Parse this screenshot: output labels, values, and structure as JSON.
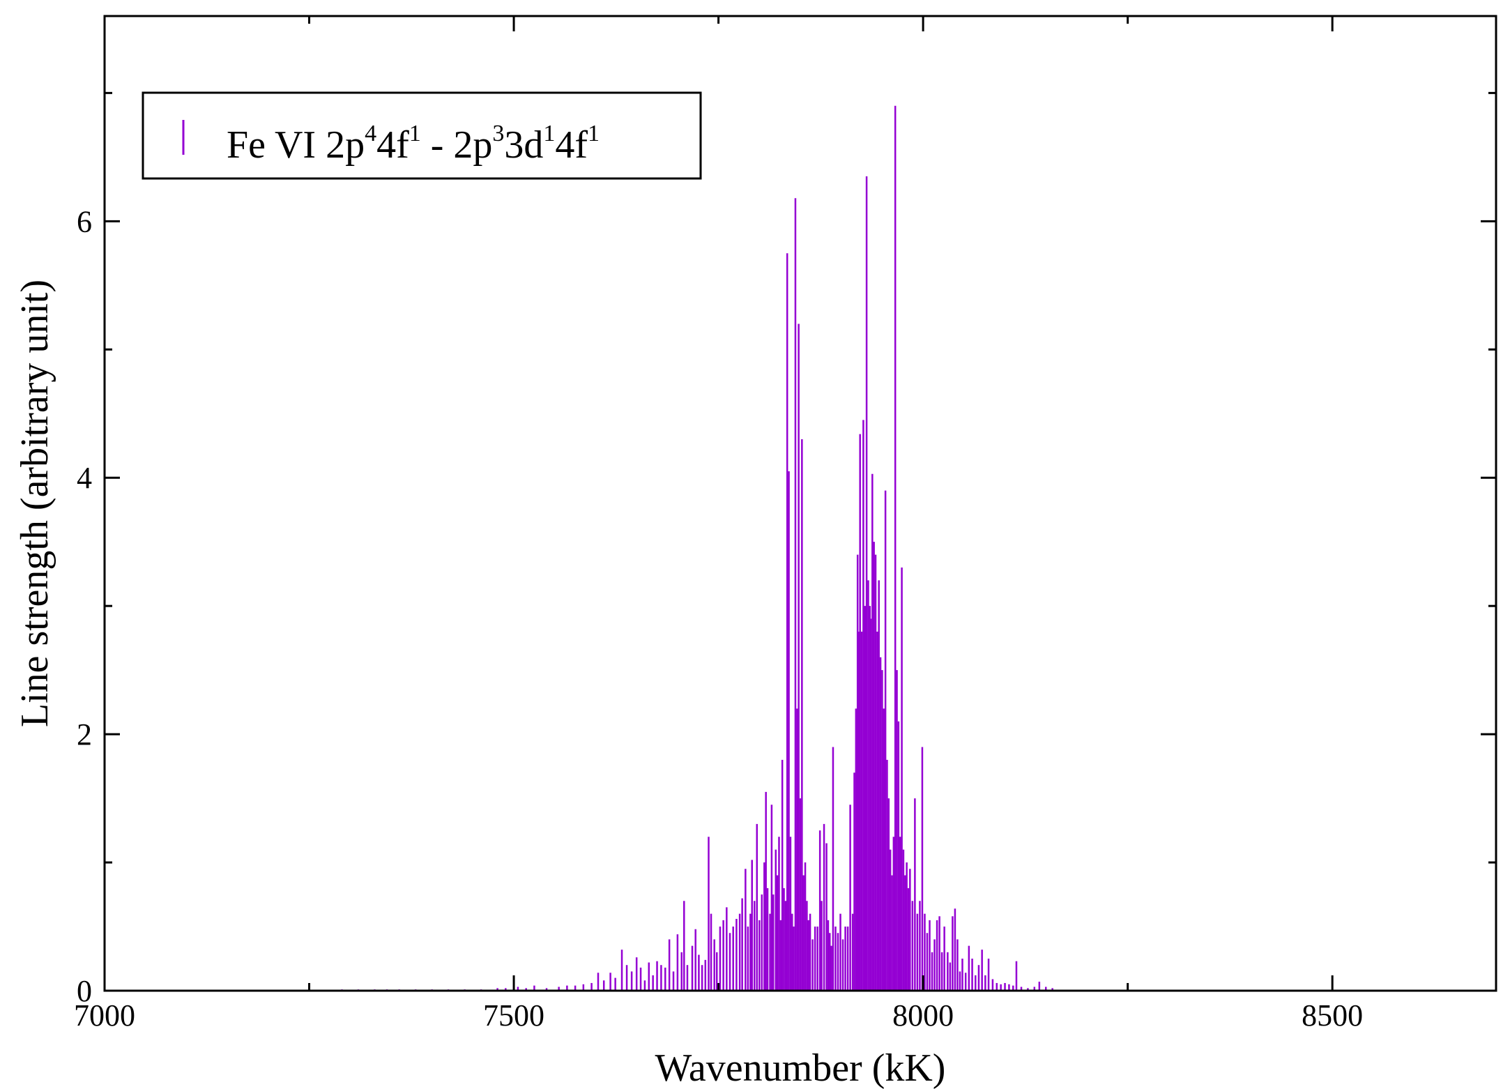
{
  "chart_data": {
    "type": "bar",
    "xlabel": "Wavenumber (kK)",
    "ylabel": "Line strength (arbitrary unit)",
    "xlim": [
      7000,
      8700
    ],
    "ylim": [
      0,
      7.6
    ],
    "x_ticks": [
      7000,
      7500,
      8000,
      8500
    ],
    "y_ticks": [
      0,
      2,
      4,
      6
    ],
    "x_minor_step": 250,
    "y_minor_step": 1,
    "grid": false,
    "legend_position": "top-left",
    "color": "#9400D3",
    "series": [
      {
        "name": "Fe VI 2p44f1 - 2p33d14f1",
        "legend_parts": [
          {
            "text": "Fe VI 2p",
            "sup": false
          },
          {
            "text": "4",
            "sup": true
          },
          {
            "text": "4f",
            "sup": false
          },
          {
            "text": "1",
            "sup": true
          },
          {
            "text": " - 2p",
            "sup": false
          },
          {
            "text": "3",
            "sup": true
          },
          {
            "text": "3d",
            "sup": false
          },
          {
            "text": "1",
            "sup": true
          },
          {
            "text": "4f",
            "sup": false
          },
          {
            "text": "1",
            "sup": true
          }
        ],
        "lines": [
          [
            7290,
            0.01
          ],
          [
            7310,
            0.01
          ],
          [
            7330,
            0.01
          ],
          [
            7345,
            0.01
          ],
          [
            7360,
            0.01
          ],
          [
            7380,
            0.01
          ],
          [
            7400,
            0.01
          ],
          [
            7420,
            0.01
          ],
          [
            7440,
            0.01
          ],
          [
            7460,
            0.01
          ],
          [
            7480,
            0.02
          ],
          [
            7490,
            0.02
          ],
          [
            7505,
            0.03
          ],
          [
            7515,
            0.02
          ],
          [
            7525,
            0.04
          ],
          [
            7540,
            0.02
          ],
          [
            7555,
            0.03
          ],
          [
            7565,
            0.04
          ],
          [
            7575,
            0.04
          ],
          [
            7585,
            0.05
          ],
          [
            7595,
            0.06
          ],
          [
            7603,
            0.14
          ],
          [
            7610,
            0.08
          ],
          [
            7618,
            0.14
          ],
          [
            7624,
            0.1
          ],
          [
            7632,
            0.32
          ],
          [
            7638,
            0.2
          ],
          [
            7644,
            0.15
          ],
          [
            7650,
            0.26
          ],
          [
            7655,
            0.18
          ],
          [
            7660,
            0.08
          ],
          [
            7665,
            0.22
          ],
          [
            7670,
            0.12
          ],
          [
            7675,
            0.23
          ],
          [
            7680,
            0.2
          ],
          [
            7685,
            0.18
          ],
          [
            7690,
            0.4
          ],
          [
            7695,
            0.15
          ],
          [
            7700,
            0.44
          ],
          [
            7705,
            0.3
          ],
          [
            7708,
            0.7
          ],
          [
            7712,
            0.2
          ],
          [
            7718,
            0.35
          ],
          [
            7722,
            0.48
          ],
          [
            7726,
            0.28
          ],
          [
            7730,
            0.2
          ],
          [
            7734,
            0.24
          ],
          [
            7738,
            1.2
          ],
          [
            7741,
            0.6
          ],
          [
            7745,
            0.4
          ],
          [
            7748,
            0.3
          ],
          [
            7752,
            0.5
          ],
          [
            7756,
            0.55
          ],
          [
            7760,
            0.65
          ],
          [
            7764,
            0.45
          ],
          [
            7768,
            0.5
          ],
          [
            7772,
            0.56
          ],
          [
            7776,
            0.6
          ],
          [
            7779,
            0.72
          ],
          [
            7783,
            0.95
          ],
          [
            7786,
            0.5
          ],
          [
            7789,
            0.6
          ],
          [
            7791,
            1.02
          ],
          [
            7794,
            0.7
          ],
          [
            7797,
            1.3
          ],
          [
            7800,
            0.55
          ],
          [
            7803,
            0.75
          ],
          [
            7806,
            1.0
          ],
          [
            7808,
            1.55
          ],
          [
            7810,
            0.8
          ],
          [
            7813,
            0.6
          ],
          [
            7815,
            1.45
          ],
          [
            7817,
            0.75
          ],
          [
            7820,
            1.1
          ],
          [
            7822,
            0.9
          ],
          [
            7824,
            1.2
          ],
          [
            7826,
            0.55
          ],
          [
            7828,
            1.8
          ],
          [
            7830,
            0.8
          ],
          [
            7832,
            0.7
          ],
          [
            7834,
            5.75
          ],
          [
            7836,
            4.05
          ],
          [
            7838,
            1.2
          ],
          [
            7840,
            0.6
          ],
          [
            7842,
            0.5
          ],
          [
            7844,
            6.18
          ],
          [
            7846,
            2.2
          ],
          [
            7848,
            5.2
          ],
          [
            7850,
            1.5
          ],
          [
            7852,
            4.3
          ],
          [
            7854,
            0.9
          ],
          [
            7856,
            1.0
          ],
          [
            7858,
            0.7
          ],
          [
            7860,
            0.55
          ],
          [
            7862,
            0.6
          ],
          [
            7865,
            0.4
          ],
          [
            7868,
            0.5
          ],
          [
            7871,
            0.5
          ],
          [
            7874,
            1.25
          ],
          [
            7876,
            0.7
          ],
          [
            7879,
            1.3
          ],
          [
            7882,
            1.15
          ],
          [
            7884,
            0.55
          ],
          [
            7886,
            0.45
          ],
          [
            7888,
            0.35
          ],
          [
            7890,
            1.9
          ],
          [
            7893,
            0.5
          ],
          [
            7896,
            0.45
          ],
          [
            7899,
            0.6
          ],
          [
            7902,
            0.4
          ],
          [
            7905,
            0.5
          ],
          [
            7908,
            0.5
          ],
          [
            7911,
            1.45
          ],
          [
            7914,
            0.6
          ],
          [
            7916,
            1.7
          ],
          [
            7918,
            2.2
          ],
          [
            7920,
            3.4
          ],
          [
            7921,
            2.8
          ],
          [
            7923,
            4.34
          ],
          [
            7925,
            2.8
          ],
          [
            7927,
            4.45
          ],
          [
            7929,
            3.0
          ],
          [
            7931,
            6.35
          ],
          [
            7933,
            3.2
          ],
          [
            7935,
            3.0
          ],
          [
            7936,
            2.9
          ],
          [
            7938,
            4.03
          ],
          [
            7940,
            3.5
          ],
          [
            7942,
            3.4
          ],
          [
            7944,
            2.8
          ],
          [
            7946,
            3.2
          ],
          [
            7948,
            2.6
          ],
          [
            7950,
            2.5
          ],
          [
            7952,
            2.2
          ],
          [
            7954,
            3.9
          ],
          [
            7956,
            1.8
          ],
          [
            7958,
            1.5
          ],
          [
            7960,
            1.1
          ],
          [
            7962,
            0.9
          ],
          [
            7964,
            1.2
          ],
          [
            7966,
            6.9
          ],
          [
            7968,
            2.5
          ],
          [
            7970,
            2.1
          ],
          [
            7972,
            1.2
          ],
          [
            7974,
            3.3
          ],
          [
            7976,
            1.1
          ],
          [
            7978,
            0.9
          ],
          [
            7980,
            1.0
          ],
          [
            7982,
            0.8
          ],
          [
            7984,
            0.95
          ],
          [
            7987,
            0.7
          ],
          [
            7990,
            1.5
          ],
          [
            7993,
            0.6
          ],
          [
            7996,
            0.7
          ],
          [
            7999,
            1.9
          ],
          [
            8002,
            0.6
          ],
          [
            8005,
            0.45
          ],
          [
            8008,
            0.55
          ],
          [
            8011,
            0.3
          ],
          [
            8014,
            0.4
          ],
          [
            8017,
            0.55
          ],
          [
            8020,
            0.58
          ],
          [
            8023,
            0.3
          ],
          [
            8026,
            0.5
          ],
          [
            8030,
            0.3
          ],
          [
            8033,
            0.22
          ],
          [
            8036,
            0.58
          ],
          [
            8039,
            0.64
          ],
          [
            8042,
            0.4
          ],
          [
            8045,
            0.15
          ],
          [
            8048,
            0.25
          ],
          [
            8052,
            0.14
          ],
          [
            8056,
            0.35
          ],
          [
            8060,
            0.25
          ],
          [
            8064,
            0.12
          ],
          [
            8068,
            0.2
          ],
          [
            8072,
            0.32
          ],
          [
            8076,
            0.12
          ],
          [
            8080,
            0.25
          ],
          [
            8085,
            0.09
          ],
          [
            8090,
            0.06
          ],
          [
            8095,
            0.05
          ],
          [
            8100,
            0.06
          ],
          [
            8105,
            0.05
          ],
          [
            8110,
            0.04
          ],
          [
            8114,
            0.23
          ],
          [
            8120,
            0.03
          ],
          [
            8128,
            0.02
          ],
          [
            8136,
            0.03
          ],
          [
            8142,
            0.07
          ],
          [
            8150,
            0.03
          ],
          [
            8158,
            0.02
          ]
        ]
      }
    ]
  }
}
